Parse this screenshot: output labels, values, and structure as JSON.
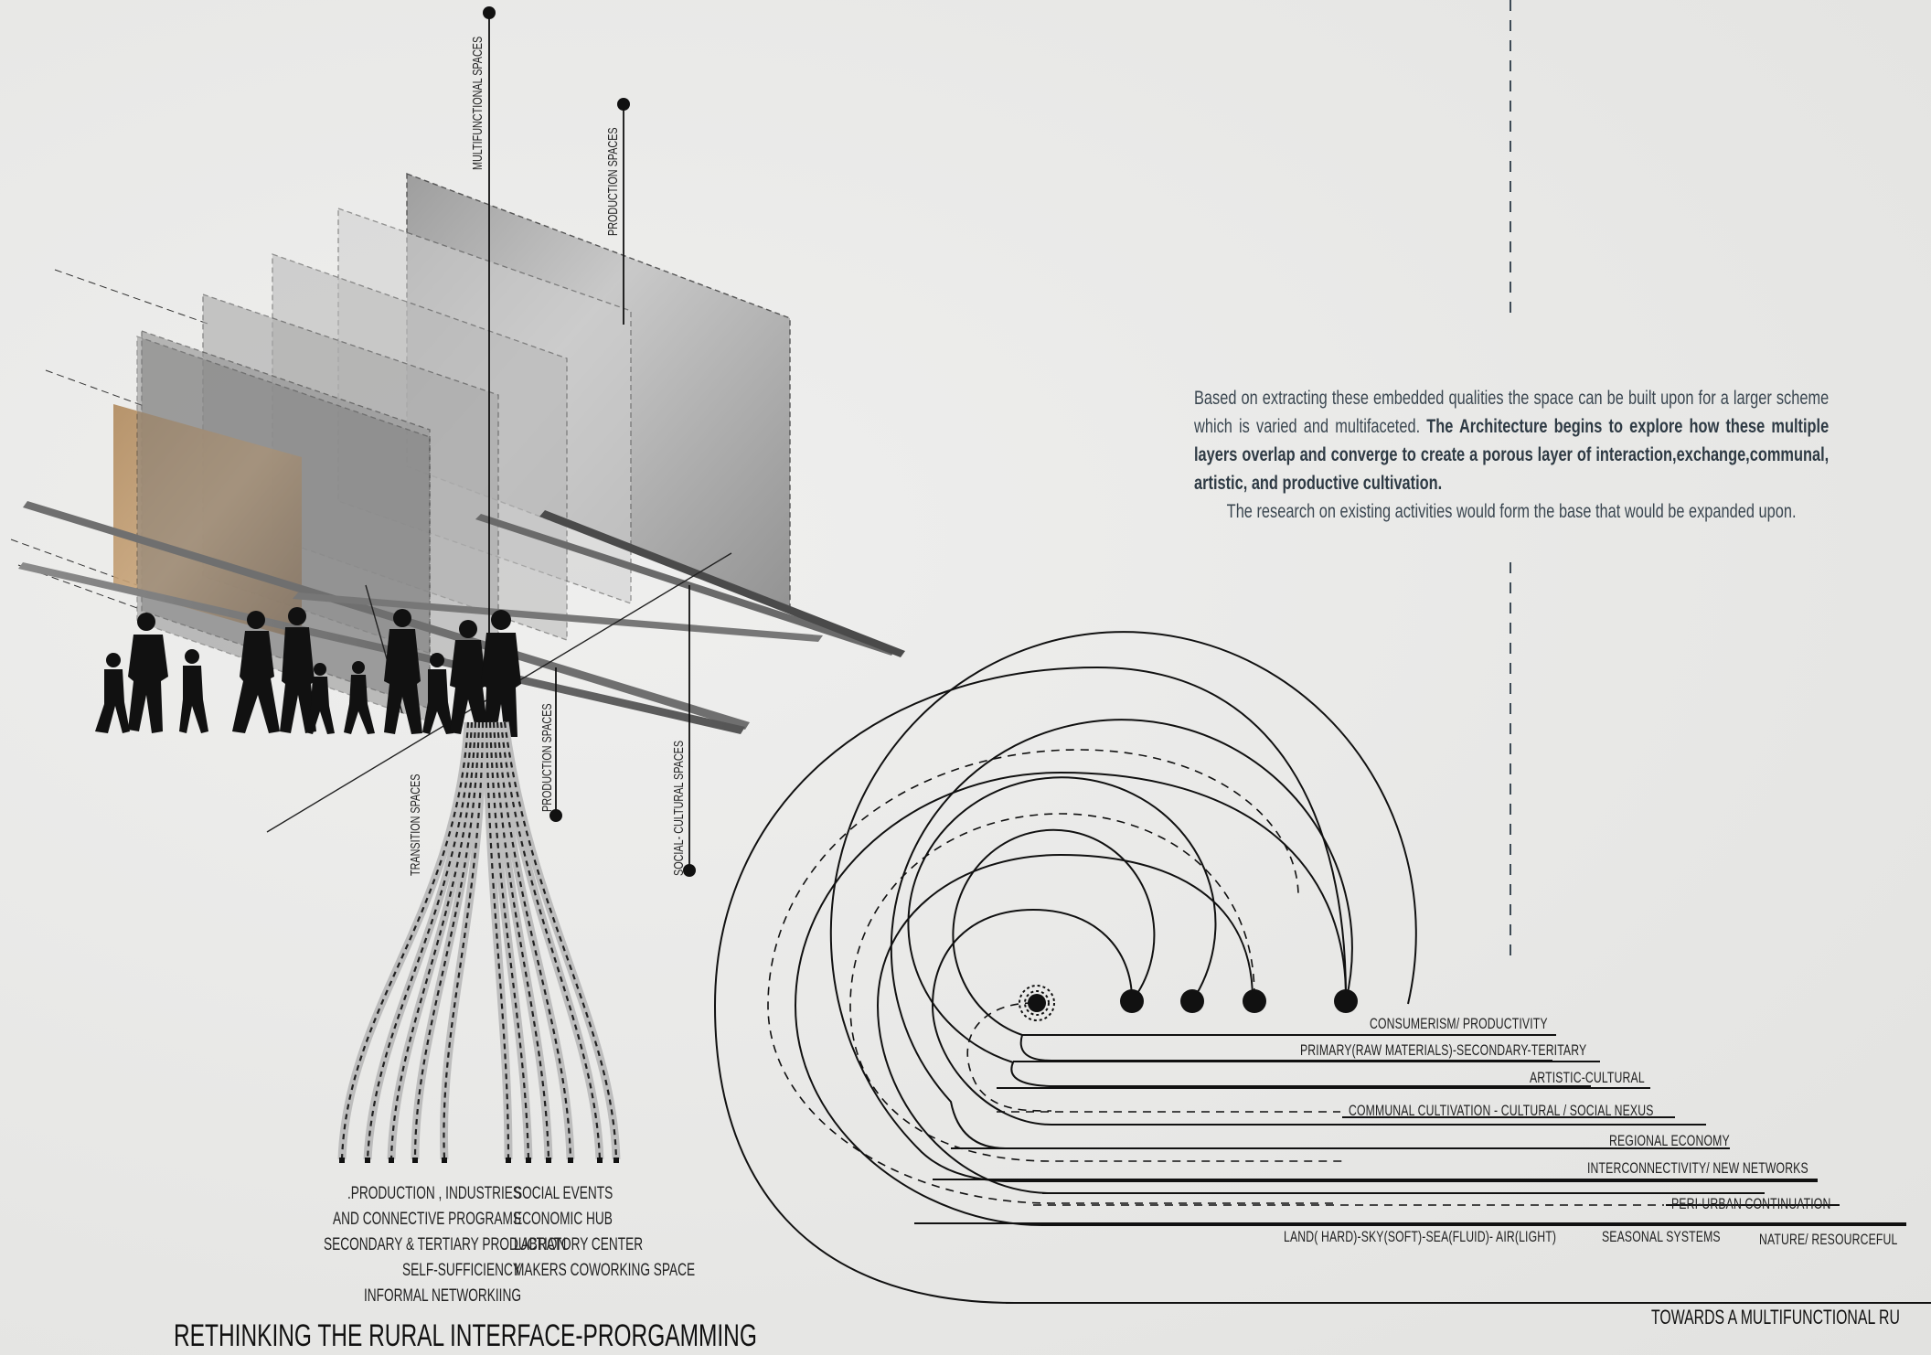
{
  "layer_labels": {
    "multifunctional": "MULTIFUNCTIONAL SPACES",
    "production_top": "PRODUCTION SPACES",
    "transition": "TRANSITION SPACES",
    "production_bottom": "PRODUCTION SPACES",
    "social_cultural": "SOCIAL- CULTURAL SPACES"
  },
  "description": {
    "part1": "Based on extracting these embedded qualities the space can be built upon for a larger scheme which is varied and multifaceted. ",
    "bold": "The Architecture begins to explore how these multiple layers overlap and converge to create a porous layer of interaction,exchange,communal, artistic, and productive cultivation.",
    "part2": "The research on existing activities would form the base that would be expanded upon."
  },
  "programs_left": [
    ".PRODUCTION , INDUSTRIES",
    "AND CONNECTIVE PROGRAMS",
    "SECONDARY & TERTIARY PRODUCTION",
    "SELF-SUFFICIENCY",
    "INFORMAL NETWORKIING"
  ],
  "programs_right": [
    "SOCIAL EVENTS",
    "ECONOMIC HUB",
    "LABRATORY CENTER",
    "MAKERS COWORKING SPACE"
  ],
  "spiral_labels": {
    "l1": "CONSUMERISM/ PRODUCTIVITY",
    "l2": "PRIMARY(RAW MATERIALS)-SECONDARY-TERITARY",
    "l3": "ARTISTIC-CULTURAL",
    "l4": "COMMUNAL CULTIVATION - CULTURAL / SOCIAL NEXUS",
    "l5": "REGIONAL ECONOMY",
    "l6": "INTERCONNECTIVITY/ NEW NETWORKS",
    "l7": "PERI-URBAN CONTINUATION",
    "l8a": "LAND( HARD)-SKY(SOFT)-SEA(FLUID)- AIR(LIGHT)",
    "l8b": "SEASONAL SYSTEMS",
    "l8c": "NATURE/ RESOURCEFUL"
  },
  "titles": {
    "left": "RETHINKING THE RURAL INTERFACE-PRORGAMMING",
    "right": "TOWARDS A MULTIFUNCTIONAL RU"
  }
}
